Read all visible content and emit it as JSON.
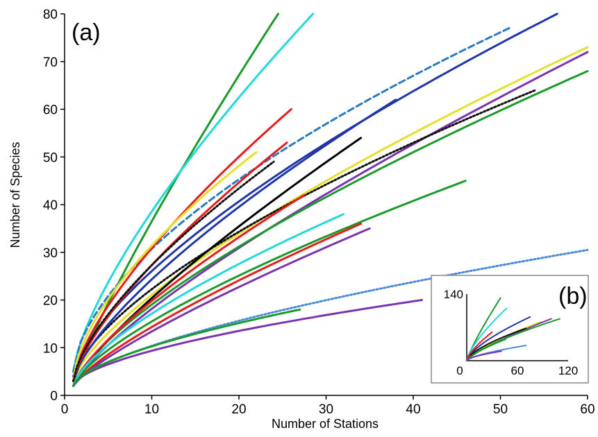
{
  "chart_data": {
    "type": "line",
    "xlabel": "Number of Stations",
    "ylabel": "Number of Species",
    "xlim": [
      0,
      60
    ],
    "ylim": [
      0,
      80
    ],
    "xticks": [
      "0",
      "10",
      "20",
      "30",
      "40",
      "50",
      "60"
    ],
    "yticks": [
      "0",
      "10",
      "20",
      "30",
      "40",
      "50",
      "60",
      "70",
      "80"
    ],
    "grid": false,
    "panel_a": "(a)",
    "series": [
      {
        "color": "#1a9a2a",
        "style": "solid",
        "x0": 1,
        "y0": 2,
        "x1": 24.5,
        "y1": 80,
        "exp": 0.85
      },
      {
        "color": "#22d8d8",
        "style": "solid",
        "x0": 1,
        "y0": 5,
        "x1": 28.5,
        "y1": 80,
        "exp": 0.72
      },
      {
        "color": "#1f35a8",
        "style": "solid",
        "x0": 1,
        "y0": 4,
        "x1": 56.5,
        "y1": 80,
        "exp": 0.68
      },
      {
        "color": "#2a7ac0",
        "style": "dashed",
        "x0": 1,
        "y0": 5,
        "x1": 51,
        "y1": 77,
        "exp": 0.6
      },
      {
        "color": "#e5e02a",
        "style": "solid",
        "x0": 1,
        "y0": 3,
        "x1": 60,
        "y1": 73,
        "exp": 0.72
      },
      {
        "color": "#7a33b0",
        "style": "solid",
        "x0": 1,
        "y0": 2,
        "x1": 60,
        "y1": 72,
        "exp": 0.78
      },
      {
        "color": "#1a9a2a",
        "style": "solid",
        "x0": 1,
        "y0": 2,
        "x1": 60,
        "y1": 68,
        "exp": 0.72
      },
      {
        "color": "#111111",
        "style": "dotted",
        "x0": 1,
        "y0": 3,
        "x1": 54,
        "y1": 64,
        "exp": 0.65
      },
      {
        "color": "#1f35a8",
        "style": "solid",
        "x0": 1,
        "y0": 3,
        "x1": 38,
        "y1": 62,
        "exp": 0.72
      },
      {
        "color": "#e81b1b",
        "style": "solid",
        "x0": 1,
        "y0": 3,
        "x1": 26,
        "y1": 60,
        "exp": 0.7
      },
      {
        "color": "#000000",
        "style": "solid",
        "x0": 1,
        "y0": 2,
        "x1": 34,
        "y1": 54,
        "exp": 0.8
      },
      {
        "color": "#e81b1b",
        "style": "solid",
        "x0": 1,
        "y0": 3,
        "x1": 25.5,
        "y1": 53,
        "exp": 0.72
      },
      {
        "color": "#e5e02a",
        "style": "solid",
        "x0": 1,
        "y0": 3,
        "x1": 22,
        "y1": 51,
        "exp": 0.62
      },
      {
        "color": "#111111",
        "style": "dotted",
        "x0": 1,
        "y0": 3,
        "x1": 24,
        "y1": 49,
        "exp": 0.68
      },
      {
        "color": "#1a9a2a",
        "style": "solid",
        "x0": 1,
        "y0": 2,
        "x1": 46,
        "y1": 45,
        "exp": 0.72
      },
      {
        "color": "#e81b1b",
        "style": "solid",
        "x0": 1,
        "y0": 2,
        "x1": 27.5,
        "y1": 42,
        "exp": 0.75
      },
      {
        "color": "#22d8d8",
        "style": "solid",
        "x0": 1,
        "y0": 2,
        "x1": 32,
        "y1": 38,
        "exp": 0.7
      },
      {
        "color": "#e81b1b",
        "style": "solid",
        "x0": 1,
        "y0": 2,
        "x1": 34,
        "y1": 36,
        "exp": 0.78
      },
      {
        "color": "#7a33b0",
        "style": "solid",
        "x0": 1,
        "y0": 2,
        "x1": 35,
        "y1": 35,
        "exp": 0.8
      },
      {
        "color": "#4a8ad8",
        "style": "dotted",
        "x0": 1,
        "y0": 2,
        "x1": 60,
        "y1": 30.5,
        "exp": 0.65
      },
      {
        "color": "#7a33b0",
        "style": "solid",
        "x0": 1,
        "y0": 2,
        "x1": 41,
        "y1": 20,
        "exp": 0.6
      },
      {
        "color": "#1a9a2a",
        "style": "solid",
        "x0": 1,
        "y0": 2,
        "x1": 27,
        "y1": 18,
        "exp": 0.62
      }
    ],
    "inset": {
      "label": "(b)",
      "xlim": [
        0,
        120
      ],
      "ylim": [
        0,
        140
      ],
      "xticks": [
        "0",
        "60",
        "120"
      ],
      "yticks": [
        "0",
        "140"
      ],
      "series": [
        {
          "color": "#1a9a2a",
          "x1": 40,
          "y1": 132,
          "exp": 0.85
        },
        {
          "color": "#22d8d8",
          "x1": 47,
          "y1": 110,
          "exp": 0.72
        },
        {
          "color": "#1f35a8",
          "x1": 75,
          "y1": 92,
          "exp": 0.68
        },
        {
          "color": "#e5e02a",
          "x1": 88,
          "y1": 82,
          "exp": 0.72
        },
        {
          "color": "#7a33b0",
          "x1": 100,
          "y1": 88,
          "exp": 0.78
        },
        {
          "color": "#1a9a2a",
          "x1": 110,
          "y1": 88,
          "exp": 0.72
        },
        {
          "color": "#111111",
          "x1": 70,
          "y1": 68,
          "exp": 0.65
        },
        {
          "color": "#e81b1b",
          "x1": 30,
          "y1": 60,
          "exp": 0.7
        },
        {
          "color": "#1a9a2a",
          "x1": 46,
          "y1": 45,
          "exp": 0.72
        },
        {
          "color": "#4a8ad8",
          "x1": 70,
          "y1": 32,
          "exp": 0.65
        },
        {
          "color": "#7a33b0",
          "x1": 41,
          "y1": 20,
          "exp": 0.6
        }
      ]
    }
  }
}
